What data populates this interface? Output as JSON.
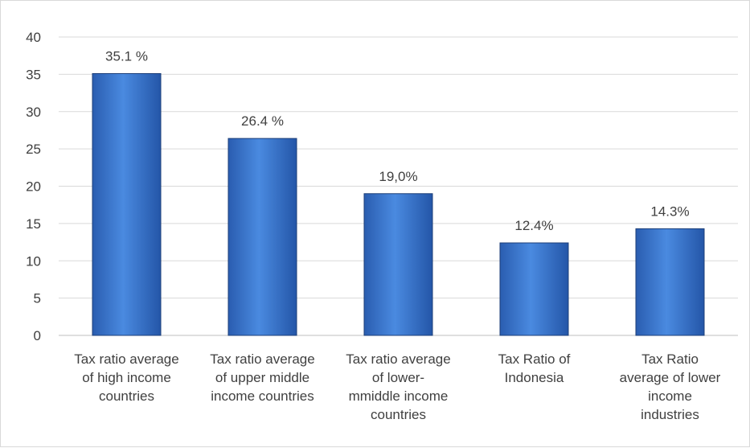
{
  "chart_data": {
    "type": "bar",
    "categories": [
      [
        "Tax ratio average",
        "of high income",
        "countries"
      ],
      [
        "Tax ratio average",
        "of upper middle",
        "income countries"
      ],
      [
        "Tax ratio average",
        "of lower-",
        "mmiddle income",
        "countries"
      ],
      [
        "Tax Ratio of",
        "Indonesia"
      ],
      [
        "Tax Ratio",
        "average of lower",
        "income",
        "industries"
      ]
    ],
    "values": [
      35.1,
      26.4,
      19.0,
      12.4,
      14.3
    ],
    "data_labels": [
      "35.1 %",
      "26.4 %",
      "19,0%",
      "12.4%",
      "14.3%"
    ],
    "yticks": [
      "0",
      "5",
      "10",
      "15",
      "20",
      "25",
      "30",
      "35",
      "40"
    ],
    "ylim": [
      0,
      40
    ],
    "title": "",
    "xlabel": "",
    "ylabel": "",
    "grid": true,
    "legend": "none",
    "colors": {
      "bar_top": "#5b9bd5",
      "bar_mid": "#3a7cd0",
      "bar_bottom": "#1f4e9a",
      "bar_stroke": "#1d3f78",
      "grid": "#d9d9d9",
      "axis": "#bfbfbf",
      "text": "#404040"
    }
  }
}
